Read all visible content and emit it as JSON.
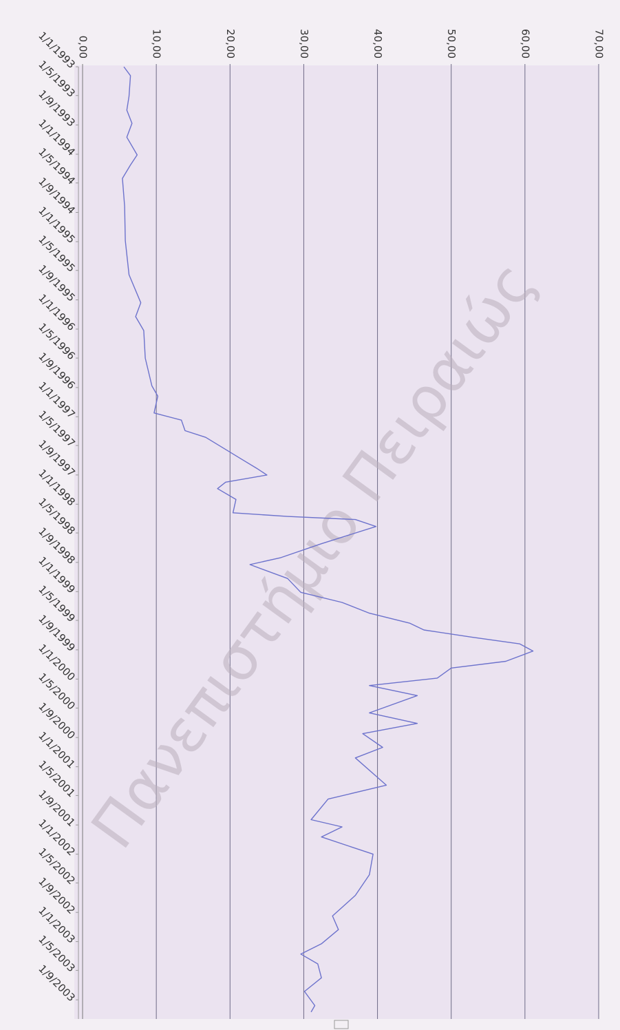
{
  "chart_data": {
    "type": "line",
    "orientation": "rotated",
    "annotation": "Πανεπιστήμιο Πειραιώς",
    "color": "#6c72cc",
    "grid": true,
    "x": [
      "1993-01-01",
      "1993-02-07",
      "1993-05-04",
      "1993-07-01",
      "1993-08-25",
      "1993-10-22",
      "1994-01-04",
      "1994-02-15",
      "1994-04-12",
      "1994-08-06",
      "1994-12-28",
      "1995-05-19",
      "1995-09-13",
      "1995-11-10",
      "1996-01-07",
      "1996-05-01",
      "1996-08-25",
      "1996-10-07",
      "1996-12-16",
      "1997-01-15",
      "1997-02-28",
      "1997-03-28",
      "1997-05-10",
      "1997-06-22",
      "1997-08-04",
      "1997-09-01",
      "1997-10-01",
      "1997-10-28",
      "1997-12-12",
      "1998-02-06",
      "1998-02-21",
      "1998-03-06",
      "1998-04-04",
      "1998-06-15",
      "1998-08-12",
      "1998-09-10",
      "1998-11-07",
      "1999-01-04",
      "1999-02-15",
      "1999-04-01",
      "1999-05-13",
      "1999-06-10",
      "1999-07-10",
      "1999-08-07",
      "1999-09-06",
      "1999-10-19",
      "1999-11-16",
      "1999-12-28",
      "2000-01-28",
      "2000-03-10",
      "2000-05-21",
      "2000-07-04",
      "2000-08-16",
      "2000-10-12",
      "2000-11-25",
      "2001-03-19",
      "2001-05-16",
      "2001-08-10",
      "2001-09-09",
      "2001-10-21",
      "2002-01-01",
      "2002-03-28",
      "2002-06-22",
      "2002-09-16",
      "2002-11-12",
      "2003-01-10",
      "2003-02-22",
      "2003-04-04",
      "2003-06-01",
      "2003-07-28",
      "2003-09-25",
      "2003-10-22"
    ],
    "values": [
      5.6,
      6.5,
      6.3,
      6.0,
      6.7,
      6.0,
      7.4,
      6.5,
      5.4,
      5.7,
      5.8,
      6.3,
      7.9,
      7.2,
      8.3,
      8.5,
      9.4,
      10.2,
      9.7,
      13.4,
      13.9,
      16.7,
      19.0,
      21.3,
      23.6,
      25.0,
      19.4,
      18.3,
      20.8,
      20.4,
      27.8,
      37.0,
      39.8,
      32.4,
      26.9,
      22.7,
      27.8,
      29.6,
      35.2,
      38.9,
      44.4,
      46.3,
      52.8,
      59.3,
      61.1,
      57.4,
      50.0,
      48.1,
      38.9,
      45.4,
      38.9,
      45.4,
      38.0,
      40.7,
      37.0,
      41.2,
      33.3,
      31.0,
      35.2,
      32.4,
      39.4,
      38.9,
      37.0,
      33.9,
      34.7,
      32.4,
      29.6,
      31.9,
      32.4,
      30.1,
      31.5,
      31.0
    ],
    "xlim": [
      "1993-01-01",
      "2003-11-20"
    ],
    "xticks": [
      {
        "value": "1993-01-01",
        "label": "1/1/1993"
      },
      {
        "value": "1993-05-01",
        "label": "1/5/1993"
      },
      {
        "value": "1993-09-01",
        "label": "1/9/1993"
      },
      {
        "value": "1994-01-01",
        "label": "1/1/1994"
      },
      {
        "value": "1994-05-01",
        "label": "1/5/1994"
      },
      {
        "value": "1994-09-01",
        "label": "1/9/1994"
      },
      {
        "value": "1995-01-01",
        "label": "1/1/1995"
      },
      {
        "value": "1995-05-01",
        "label": "1/5/1995"
      },
      {
        "value": "1995-09-01",
        "label": "1/9/1995"
      },
      {
        "value": "1996-01-01",
        "label": "1/1/1996"
      },
      {
        "value": "1996-05-01",
        "label": "1/5/1996"
      },
      {
        "value": "1996-09-01",
        "label": "1/9/1996"
      },
      {
        "value": "1997-01-01",
        "label": "1/1/1997"
      },
      {
        "value": "1997-05-01",
        "label": "1/5/1997"
      },
      {
        "value": "1997-09-01",
        "label": "1/9/1997"
      },
      {
        "value": "1998-01-01",
        "label": "1/1/1998"
      },
      {
        "value": "1998-05-01",
        "label": "1/5/1998"
      },
      {
        "value": "1998-09-01",
        "label": "1/9/1998"
      },
      {
        "value": "1999-01-01",
        "label": "1/1/1999"
      },
      {
        "value": "1999-05-01",
        "label": "1/5/1999"
      },
      {
        "value": "1999-09-01",
        "label": "1/9/1999"
      },
      {
        "value": "2000-01-01",
        "label": "1/1/2000"
      },
      {
        "value": "2000-05-01",
        "label": "1/5/2000"
      },
      {
        "value": "2000-09-01",
        "label": "1/9/2000"
      },
      {
        "value": "2001-01-01",
        "label": "1/1/2001"
      },
      {
        "value": "2001-05-01",
        "label": "1/5/2001"
      },
      {
        "value": "2001-09-01",
        "label": "1/9/2001"
      },
      {
        "value": "2002-01-01",
        "label": "1/1/2002"
      },
      {
        "value": "2002-05-01",
        "label": "1/5/2002"
      },
      {
        "value": "2002-09-01",
        "label": "1/9/2002"
      },
      {
        "value": "2003-01-01",
        "label": "1/1/2003"
      },
      {
        "value": "2003-05-01",
        "label": "1/5/2003"
      },
      {
        "value": "2003-09-01",
        "label": "1/9/2003"
      }
    ],
    "ylim": [
      0,
      70
    ],
    "yticks": [
      {
        "value": 0,
        "label": "0,00"
      },
      {
        "value": 10,
        "label": "10,00"
      },
      {
        "value": 20,
        "label": "20,00"
      },
      {
        "value": 30,
        "label": "30,00"
      },
      {
        "value": 40,
        "label": "40,00"
      },
      {
        "value": 50,
        "label": "50,00"
      },
      {
        "value": 60,
        "label": "60,00"
      },
      {
        "value": 70,
        "label": "70,00"
      }
    ]
  }
}
